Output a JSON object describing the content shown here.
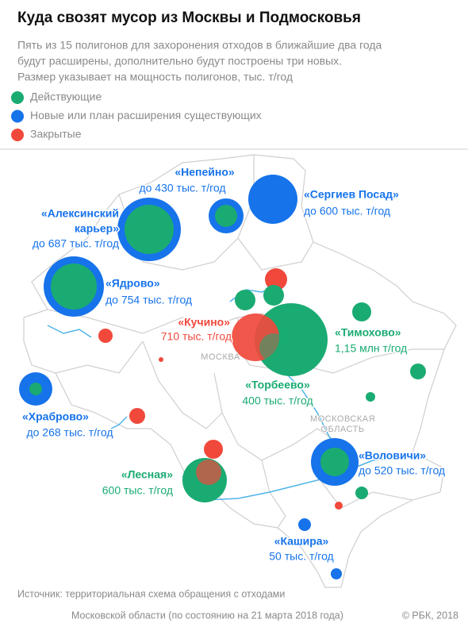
{
  "header": {
    "title": "Куда свозят мусор из Москвы и Подмосковья",
    "subtitle": [
      "Пять из 15 полигонов для захоронения отходов в ближайшие два года",
      "будут расширены, дополнительно будут построены три новых.",
      "Размер указывает на мощность полигонов, тыс. т/год"
    ]
  },
  "legend": [
    {
      "label": "Действующие",
      "color": "#1aab72"
    },
    {
      "label": "Новые или план расширения существующих",
      "color": "#1673ea"
    },
    {
      "label": "Закрытые",
      "color": "#f0493c"
    }
  ],
  "places": [
    {
      "name": [
        "«Непейно»"
      ],
      "capacity": "до 430 тыс. т/год",
      "color": "#1673ea"
    },
    {
      "name": [
        "«Сергиев Посад»"
      ],
      "capacity": "до 600 тыс. т/год",
      "color": "#1673ea"
    },
    {
      "name": [
        "«Алексинский",
        "карьер»"
      ],
      "capacity": "до 687 тыс. т/год",
      "color": "#1673ea"
    },
    {
      "name": [
        "«Ядрово»"
      ],
      "capacity": "до 754 тыс. т/год",
      "color": "#1673ea"
    },
    {
      "name": [
        "«Кучино»"
      ],
      "capacity": "710 тыс. т/год",
      "color": "#f0493c"
    },
    {
      "name": [
        "«Тимохово»"
      ],
      "capacity": "1,15 млн т/год",
      "color": "#1aab72"
    },
    {
      "name": [
        "«Торбеево»"
      ],
      "capacity": "400 тыс. т/год",
      "color": "#1aab72"
    },
    {
      "name": [
        "«Храброво»"
      ],
      "capacity": "до 268 тыс. т/год",
      "color": "#1673ea"
    },
    {
      "name": [
        "«Лесная»"
      ],
      "capacity": "600 тыс. т/год",
      "color": "#1aab72"
    },
    {
      "name": [
        "«Воловичи»"
      ],
      "capacity": "до 520 тыс. т/год",
      "color": "#1673ea"
    },
    {
      "name": [
        "«Кашира»"
      ],
      "capacity": "50 тыс. т/год",
      "color": "#1673ea"
    }
  ],
  "map_labels": [
    "МОСКВА",
    "МОСКОВСКАЯ",
    "ОБЛАСТЬ"
  ],
  "source": [
    "Источник: территориальная схема обращения с отходами",
    "Московской области (по состоянию на 21 марта 2018 года)"
  ],
  "credit": "© РБК, 2018"
}
